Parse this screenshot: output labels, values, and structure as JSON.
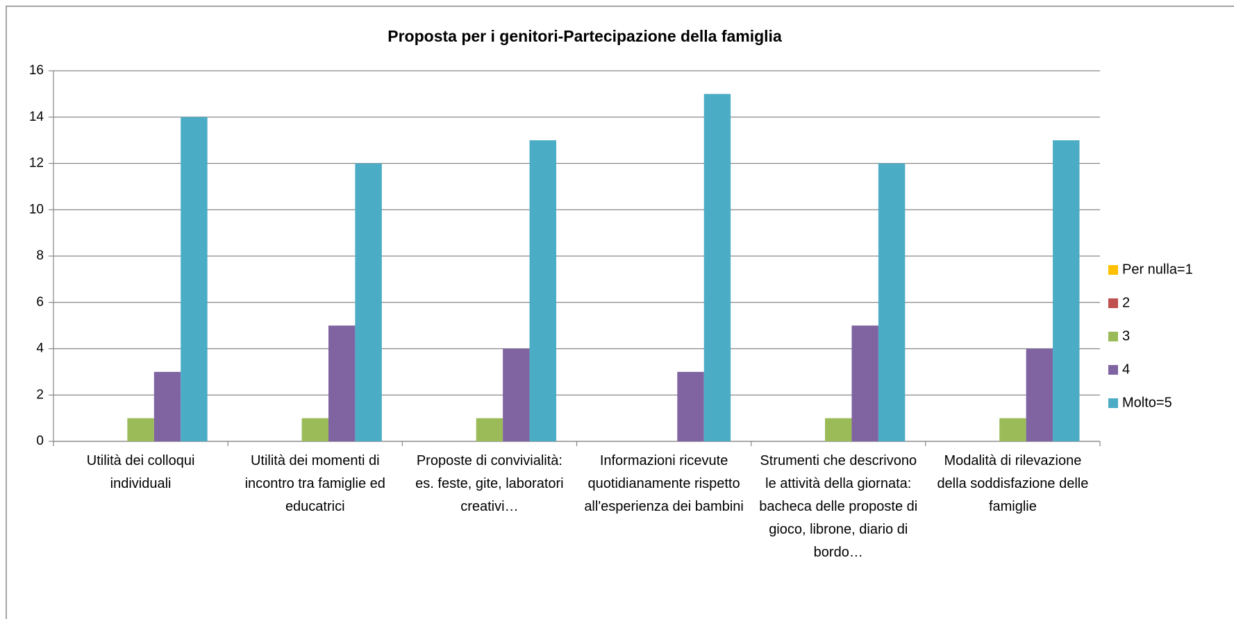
{
  "chart_data": {
    "type": "bar",
    "title": "Proposta per i genitori-Partecipazione della famiglia",
    "categories": [
      "Utilità dei colloqui individuali",
      "Utilità dei momenti di incontro tra famiglie ed educatrici",
      "Proposte di convivialità: es. feste, gite, laboratori creativi…",
      "Informazioni ricevute quotidianamente rispetto all'esperienza dei bambini",
      "Strumenti che descrivono le attività della giornata: bacheca delle proposte di gioco, librone, diario di bordo…",
      "Modalità di rilevazione della soddisfazione delle famiglie"
    ],
    "series": [
      {
        "name": "Per nulla=1",
        "color": "#FFC000",
        "values": [
          0,
          0,
          0,
          0,
          0,
          0
        ]
      },
      {
        "name": "2",
        "color": "#C0504D",
        "values": [
          0,
          0,
          0,
          0,
          0,
          0
        ]
      },
      {
        "name": "3",
        "color": "#9BBB59",
        "values": [
          1,
          1,
          1,
          0,
          1,
          1
        ]
      },
      {
        "name": "4",
        "color": "#8064A2",
        "values": [
          3,
          5,
          4,
          3,
          5,
          4
        ]
      },
      {
        "name": "Molto=5",
        "color": "#4BACC6",
        "values": [
          14,
          12,
          13,
          15,
          12,
          13
        ]
      }
    ],
    "ylim": [
      0,
      16
    ],
    "yticks": [
      0,
      2,
      4,
      6,
      8,
      10,
      12,
      14,
      16
    ],
    "grid": true,
    "legend": "right"
  }
}
